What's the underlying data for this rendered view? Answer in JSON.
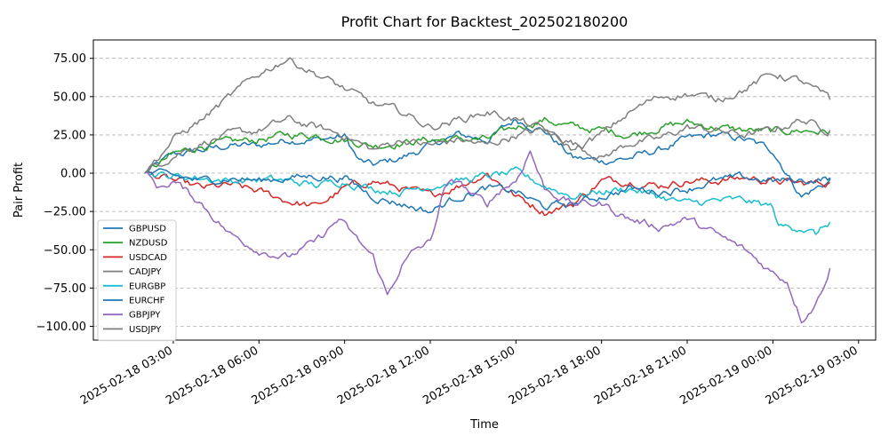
{
  "chart_data": {
    "type": "line",
    "title": "Profit Chart for Backtest_202502180200",
    "xlabel": "Time",
    "ylabel": "Pair Profit",
    "x_tick_labels": [
      "2025-02-18 03:00",
      "2025-02-18 06:00",
      "2025-02-18 09:00",
      "2025-02-18 12:00",
      "2025-02-18 15:00",
      "2025-02-18 18:00",
      "2025-02-18 21:00",
      "2025-02-19 00:00",
      "2025-02-19 03:00"
    ],
    "x_tick_hours": [
      3,
      6,
      9,
      12,
      15,
      18,
      21,
      24,
      27
    ],
    "x_range_hours": [
      0.2,
      27.6
    ],
    "y_ticks": [
      75.0,
      50.0,
      25.0,
      0.0,
      -25.0,
      -50.0,
      -75.0,
      -100.0
    ],
    "y_tick_labels": [
      "75.00",
      "50.00",
      "25.00",
      "0.00",
      "−25.00",
      "−50.00",
      "−75.00",
      "−100.00"
    ],
    "ylim": [
      -109,
      87
    ],
    "grid": "horizontal dashed",
    "legend_position": "lower-left",
    "series": [
      {
        "name": "GBPUSD",
        "color": "#1f77b4",
        "x": [
          2.0,
          3.0,
          4.0,
          5.0,
          6.0,
          7.0,
          8.0,
          9.0,
          9.5,
          10.0,
          11.0,
          12.0,
          13.0,
          14.0,
          15.0,
          16.0,
          17.0,
          18.0,
          19.0,
          20.0,
          21.0,
          22.0,
          23.0,
          24.0,
          24.5,
          25.0,
          26.0,
          26.0
        ],
        "y": [
          0,
          12,
          15,
          18,
          18,
          22,
          22,
          24,
          8,
          5,
          10,
          18,
          25,
          22,
          35,
          28,
          10,
          8,
          10,
          15,
          22,
          25,
          22,
          15,
          0,
          -15,
          -5,
          -3
        ]
      },
      {
        "name": "NZDUSD",
        "color": "#2ca02c",
        "x": [
          2.0,
          3.0,
          4.0,
          5.0,
          6.0,
          7.0,
          8.0,
          9.0,
          10.0,
          11.0,
          12.0,
          13.0,
          14.0,
          15.0,
          16.0,
          17.0,
          18.0,
          19.0,
          20.0,
          21.0,
          22.0,
          23.0,
          24.0,
          25.0,
          26.0
        ],
        "y": [
          0,
          12,
          18,
          20,
          22,
          25,
          25,
          22,
          18,
          20,
          22,
          22,
          22,
          30,
          35,
          30,
          28,
          25,
          30,
          33,
          30,
          28,
          27,
          28,
          27
        ]
      },
      {
        "name": "USDCAD",
        "color": "#d62728",
        "x": [
          2.0,
          3.0,
          4.0,
          5.0,
          6.0,
          7.0,
          8.0,
          9.0,
          10.0,
          11.0,
          12.0,
          13.0,
          14.0,
          15.0,
          16.0,
          17.0,
          18.0,
          19.0,
          20.0,
          21.0,
          22.0,
          23.0,
          24.0,
          25.0,
          26.0
        ],
        "y": [
          0,
          -5,
          -10,
          -8,
          -12,
          -18,
          -22,
          -10,
          -5,
          -10,
          -15,
          -8,
          0,
          -15,
          -25,
          -20,
          -5,
          -5,
          -8,
          -5,
          -5,
          -3,
          -5,
          -7,
          -6
        ]
      },
      {
        "name": "CADJPY",
        "color": "#7f7f7f",
        "x": [
          2.0,
          3.0,
          4.0,
          5.0,
          6.0,
          7.0,
          8.0,
          9.0,
          10.0,
          11.0,
          12.0,
          13.0,
          14.0,
          15.0,
          16.0,
          17.0,
          18.0,
          19.0,
          20.0,
          21.0,
          22.0,
          23.0,
          24.0,
          25.0,
          26.0
        ],
        "y": [
          0,
          12,
          20,
          25,
          28,
          35,
          30,
          25,
          15,
          22,
          18,
          22,
          18,
          25,
          28,
          20,
          10,
          20,
          22,
          30,
          28,
          25,
          28,
          35,
          28
        ]
      },
      {
        "name": "EURGBP",
        "color": "#17becf",
        "x": [
          2.0,
          3.0,
          4.0,
          5.0,
          6.0,
          7.0,
          8.0,
          9.0,
          10.0,
          11.0,
          12.0,
          13.0,
          14.0,
          15.0,
          16.0,
          17.0,
          18.0,
          19.0,
          20.0,
          21.0,
          22.0,
          23.0,
          24.0,
          24.2,
          25.0,
          25.5,
          26.0
        ],
        "y": [
          0,
          -2,
          -3,
          -5,
          -4,
          -5,
          -8,
          -5,
          -10,
          -12,
          -8,
          -5,
          -2,
          0,
          -8,
          -15,
          -12,
          -10,
          -15,
          -20,
          -18,
          -18,
          -22,
          -35,
          -35,
          -40,
          -32
        ]
      },
      {
        "name": "EURCHF",
        "color": "#1f77b4",
        "x": [
          2.0,
          3.0,
          4.0,
          5.0,
          6.0,
          7.0,
          8.0,
          9.0,
          10.0,
          11.0,
          12.0,
          13.0,
          14.0,
          15.0,
          16.0,
          17.0,
          18.0,
          19.0,
          20.0,
          21.0,
          22.0,
          23.0,
          24.0,
          25.0,
          26.0
        ],
        "y": [
          0,
          -2,
          -5,
          -3,
          -5,
          -3,
          -2,
          -3,
          -15,
          -20,
          -25,
          -15,
          -10,
          -12,
          -22,
          -20,
          -15,
          -10,
          -12,
          -10,
          -5,
          -3,
          -5,
          -5,
          -3
        ]
      },
      {
        "name": "GBPJPY",
        "color": "#9467bd",
        "x": [
          2.0,
          2.5,
          3.0,
          4.0,
          5.0,
          6.0,
          7.0,
          8.0,
          8.8,
          9.5,
          10.0,
          10.5,
          11.0,
          11.5,
          12.0,
          12.5,
          13.0,
          13.5,
          14.0,
          14.5,
          15.0,
          15.5,
          16.0,
          17.0,
          18.0,
          19.0,
          20.0,
          21.0,
          22.0,
          23.0,
          24.0,
          24.5,
          25.0,
          25.5,
          26.0
        ],
        "y": [
          0,
          -10,
          -5,
          -20,
          -40,
          -50,
          -55,
          -45,
          -30,
          -45,
          -55,
          -80,
          -60,
          -50,
          -45,
          -10,
          -5,
          -15,
          -20,
          -10,
          -5,
          15,
          -10,
          -20,
          -20,
          -30,
          -35,
          -30,
          -40,
          -50,
          -65,
          -70,
          -95,
          -85,
          -62
        ]
      },
      {
        "name": "USDJPY",
        "color": "#7f7f7f",
        "x": [
          2.0,
          3.0,
          4.0,
          5.0,
          6.0,
          7.0,
          8.0,
          9.0,
          10.0,
          11.0,
          12.0,
          13.0,
          14.0,
          15.0,
          16.0,
          17.0,
          18.0,
          19.0,
          20.0,
          21.0,
          22.0,
          23.0,
          24.0,
          25.0,
          26.0
        ],
        "y": [
          0,
          22,
          35,
          50,
          65,
          75,
          65,
          55,
          45,
          40,
          30,
          35,
          40,
          35,
          28,
          15,
          25,
          40,
          50,
          52,
          48,
          55,
          65,
          60,
          48
        ]
      }
    ]
  }
}
